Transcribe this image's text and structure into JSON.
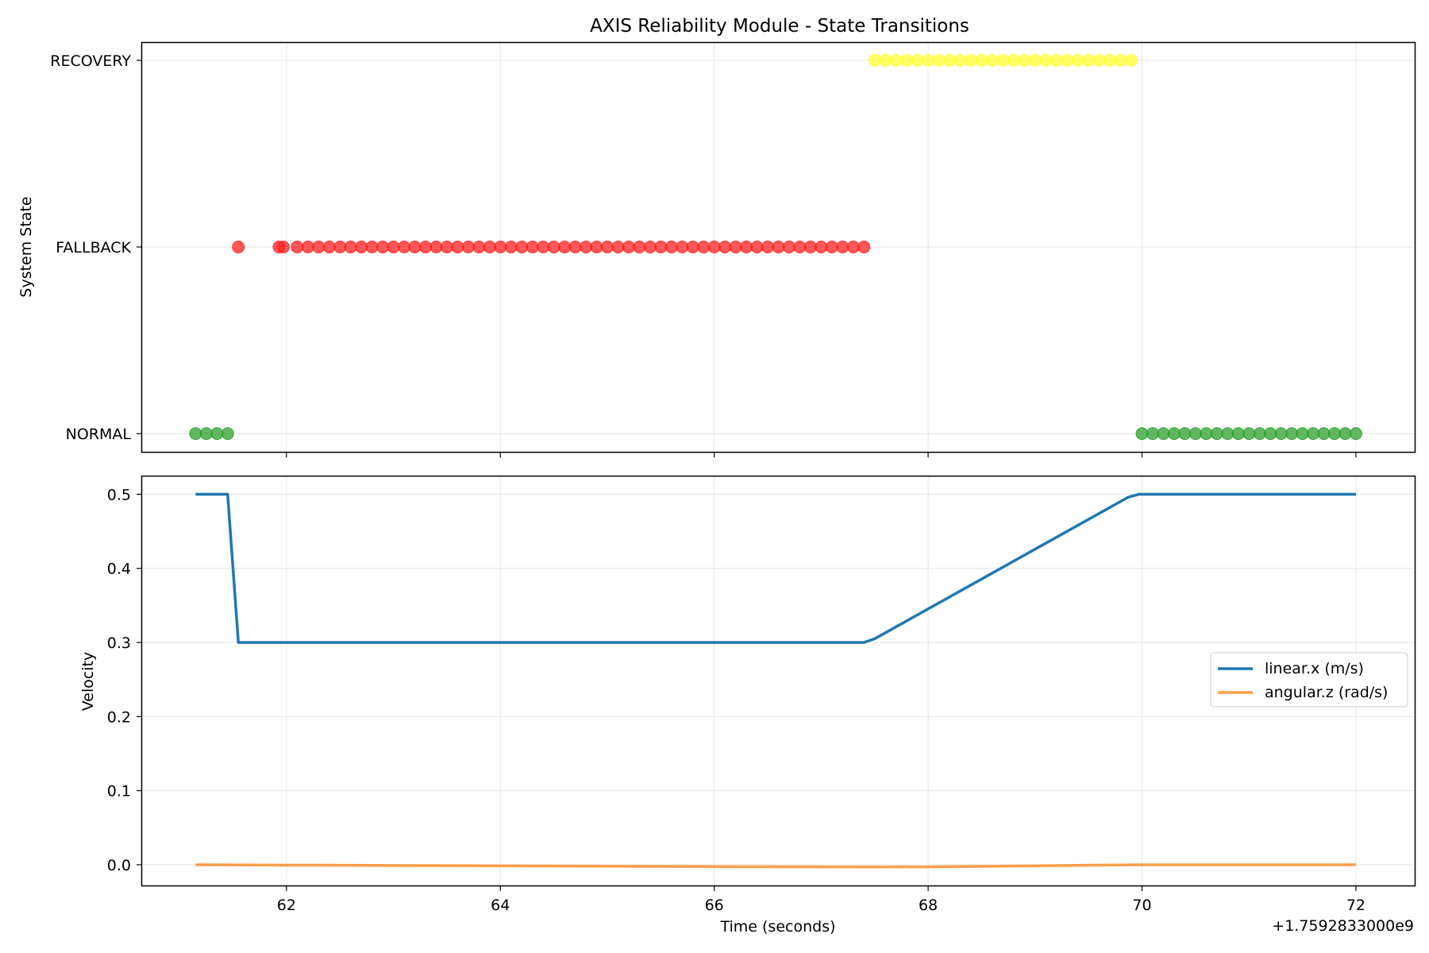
{
  "chart_data": [
    {
      "type": "scatter",
      "title": "AXIS Reliability Module - State Transitions",
      "xlabel": "",
      "ylabel": "System State",
      "y_categories": [
        "NORMAL",
        "FALLBACK",
        "RECOVERY"
      ],
      "xlim": [
        60.65,
        72.55
      ],
      "grid": true,
      "series": [
        {
          "state": "NORMAL",
          "color": "#2ca02c",
          "x": [
            61.15,
            61.25,
            61.35,
            61.45,
            70.0,
            70.1,
            70.2,
            70.3,
            70.4,
            70.5,
            70.6,
            70.7,
            70.8,
            70.9,
            71.0,
            71.1,
            71.2,
            71.3,
            71.4,
            71.5,
            71.6,
            71.7,
            71.8,
            71.9,
            72.0
          ]
        },
        {
          "state": "FALLBACK",
          "color": "#ff2020",
          "x": [
            61.55,
            61.93,
            61.97,
            62.1,
            62.2,
            62.3,
            62.4,
            62.5,
            62.6,
            62.7,
            62.8,
            62.9,
            63.0,
            63.1,
            63.2,
            63.3,
            63.4,
            63.5,
            63.6,
            63.7,
            63.8,
            63.9,
            64.0,
            64.1,
            64.2,
            64.3,
            64.4,
            64.5,
            64.6,
            64.7,
            64.8,
            64.9,
            65.0,
            65.1,
            65.2,
            65.3,
            65.4,
            65.5,
            65.6,
            65.7,
            65.8,
            65.9,
            66.0,
            66.1,
            66.2,
            66.3,
            66.4,
            66.5,
            66.6,
            66.7,
            66.8,
            66.9,
            67.0,
            67.1,
            67.2,
            67.3,
            67.4
          ]
        },
        {
          "state": "RECOVERY",
          "color": "#ffff33",
          "x": [
            67.5,
            67.6,
            67.7,
            67.8,
            67.9,
            68.0,
            68.1,
            68.2,
            68.3,
            68.4,
            68.5,
            68.6,
            68.7,
            68.8,
            68.9,
            69.0,
            69.1,
            69.2,
            69.3,
            69.4,
            69.5,
            69.6,
            69.7,
            69.8,
            69.9
          ]
        }
      ]
    },
    {
      "type": "line",
      "title": "",
      "xlabel": "Time (seconds)",
      "ylabel": "Velocity",
      "x_offset_label": "+1.7592833000e9",
      "xlim": [
        60.65,
        72.55
      ],
      "ylim": [
        -0.028,
        0.524
      ],
      "x_ticks": [
        62,
        64,
        66,
        68,
        70,
        72
      ],
      "y_ticks": [
        0.0,
        0.1,
        0.2,
        0.3,
        0.4,
        0.5
      ],
      "grid": true,
      "legend_position": "center-right",
      "series": [
        {
          "name": "linear.x (m/s)",
          "color": "#1f77b4",
          "points": [
            [
              61.15,
              0.5
            ],
            [
              61.45,
              0.5
            ],
            [
              61.55,
              0.3
            ],
            [
              67.4,
              0.3
            ],
            [
              67.5,
              0.305
            ],
            [
              69.87,
              0.496
            ],
            [
              69.97,
              0.5
            ],
            [
              72.0,
              0.5
            ]
          ]
        },
        {
          "name": "angular.z (rad/s)",
          "color": "#ff7f0e",
          "points": [
            [
              61.15,
              0.0
            ],
            [
              62.0,
              -0.0005
            ],
            [
              64.0,
              -0.0015
            ],
            [
              66.0,
              -0.0025
            ],
            [
              67.5,
              -0.003
            ],
            [
              68.0,
              -0.0028
            ],
            [
              69.0,
              -0.0015
            ],
            [
              70.0,
              0.0
            ],
            [
              72.0,
              0.0
            ]
          ]
        }
      ]
    }
  ]
}
